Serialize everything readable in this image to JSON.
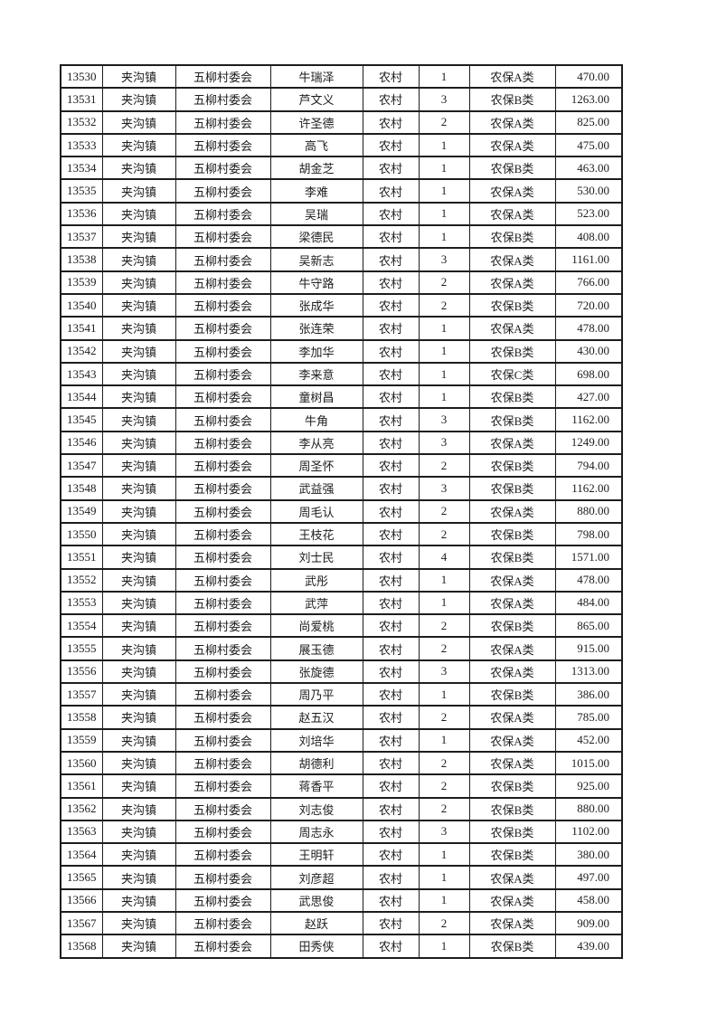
{
  "colors": {
    "page_background": "#ffffff",
    "border": "#1d1d1d",
    "text": "#1d1d1d"
  },
  "table": {
    "rows": [
      {
        "serial": "13530",
        "town": "夹沟镇",
        "village": "五柳村委会",
        "person": "牛瑞泽",
        "residence": "农村",
        "count": "1",
        "category": "农保A类",
        "amount": "470.00"
      },
      {
        "serial": "13531",
        "town": "夹沟镇",
        "village": "五柳村委会",
        "person": "芦文义",
        "residence": "农村",
        "count": "3",
        "category": "农保B类",
        "amount": "1263.00"
      },
      {
        "serial": "13532",
        "town": "夹沟镇",
        "village": "五柳村委会",
        "person": "许圣德",
        "residence": "农村",
        "count": "2",
        "category": "农保A类",
        "amount": "825.00"
      },
      {
        "serial": "13533",
        "town": "夹沟镇",
        "village": "五柳村委会",
        "person": "高飞",
        "residence": "农村",
        "count": "1",
        "category": "农保A类",
        "amount": "475.00"
      },
      {
        "serial": "13534",
        "town": "夹沟镇",
        "village": "五柳村委会",
        "person": "胡金芝",
        "residence": "农村",
        "count": "1",
        "category": "农保B类",
        "amount": "463.00"
      },
      {
        "serial": "13535",
        "town": "夹沟镇",
        "village": "五柳村委会",
        "person": "李难",
        "residence": "农村",
        "count": "1",
        "category": "农保A类",
        "amount": "530.00"
      },
      {
        "serial": "13536",
        "town": "夹沟镇",
        "village": "五柳村委会",
        "person": "吴瑞",
        "residence": "农村",
        "count": "1",
        "category": "农保A类",
        "amount": "523.00"
      },
      {
        "serial": "13537",
        "town": "夹沟镇",
        "village": "五柳村委会",
        "person": "梁德民",
        "residence": "农村",
        "count": "1",
        "category": "农保B类",
        "amount": "408.00"
      },
      {
        "serial": "13538",
        "town": "夹沟镇",
        "village": "五柳村委会",
        "person": "吴新志",
        "residence": "农村",
        "count": "3",
        "category": "农保A类",
        "amount": "1161.00"
      },
      {
        "serial": "13539",
        "town": "夹沟镇",
        "village": "五柳村委会",
        "person": "牛守路",
        "residence": "农村",
        "count": "2",
        "category": "农保A类",
        "amount": "766.00"
      },
      {
        "serial": "13540",
        "town": "夹沟镇",
        "village": "五柳村委会",
        "person": "张成华",
        "residence": "农村",
        "count": "2",
        "category": "农保B类",
        "amount": "720.00"
      },
      {
        "serial": "13541",
        "town": "夹沟镇",
        "village": "五柳村委会",
        "person": "张连荣",
        "residence": "农村",
        "count": "1",
        "category": "农保A类",
        "amount": "478.00"
      },
      {
        "serial": "13542",
        "town": "夹沟镇",
        "village": "五柳村委会",
        "person": "李加华",
        "residence": "农村",
        "count": "1",
        "category": "农保B类",
        "amount": "430.00"
      },
      {
        "serial": "13543",
        "town": "夹沟镇",
        "village": "五柳村委会",
        "person": "李来意",
        "residence": "农村",
        "count": "1",
        "category": "农保C类",
        "amount": "698.00"
      },
      {
        "serial": "13544",
        "town": "夹沟镇",
        "village": "五柳村委会",
        "person": "童树昌",
        "residence": "农村",
        "count": "1",
        "category": "农保B类",
        "amount": "427.00"
      },
      {
        "serial": "13545",
        "town": "夹沟镇",
        "village": "五柳村委会",
        "person": "牛角",
        "residence": "农村",
        "count": "3",
        "category": "农保B类",
        "amount": "1162.00"
      },
      {
        "serial": "13546",
        "town": "夹沟镇",
        "village": "五柳村委会",
        "person": "李从亮",
        "residence": "农村",
        "count": "3",
        "category": "农保A类",
        "amount": "1249.00"
      },
      {
        "serial": "13547",
        "town": "夹沟镇",
        "village": "五柳村委会",
        "person": "周圣怀",
        "residence": "农村",
        "count": "2",
        "category": "农保B类",
        "amount": "794.00"
      },
      {
        "serial": "13548",
        "town": "夹沟镇",
        "village": "五柳村委会",
        "person": "武益强",
        "residence": "农村",
        "count": "3",
        "category": "农保B类",
        "amount": "1162.00"
      },
      {
        "serial": "13549",
        "town": "夹沟镇",
        "village": "五柳村委会",
        "person": "周毛认",
        "residence": "农村",
        "count": "2",
        "category": "农保A类",
        "amount": "880.00"
      },
      {
        "serial": "13550",
        "town": "夹沟镇",
        "village": "五柳村委会",
        "person": "王枝花",
        "residence": "农村",
        "count": "2",
        "category": "农保B类",
        "amount": "798.00"
      },
      {
        "serial": "13551",
        "town": "夹沟镇",
        "village": "五柳村委会",
        "person": "刘士民",
        "residence": "农村",
        "count": "4",
        "category": "农保B类",
        "amount": "1571.00"
      },
      {
        "serial": "13552",
        "town": "夹沟镇",
        "village": "五柳村委会",
        "person": "武彤",
        "residence": "农村",
        "count": "1",
        "category": "农保A类",
        "amount": "478.00"
      },
      {
        "serial": "13553",
        "town": "夹沟镇",
        "village": "五柳村委会",
        "person": "武萍",
        "residence": "农村",
        "count": "1",
        "category": "农保A类",
        "amount": "484.00"
      },
      {
        "serial": "13554",
        "town": "夹沟镇",
        "village": "五柳村委会",
        "person": "尚爱桃",
        "residence": "农村",
        "count": "2",
        "category": "农保B类",
        "amount": "865.00"
      },
      {
        "serial": "13555",
        "town": "夹沟镇",
        "village": "五柳村委会",
        "person": "展玉德",
        "residence": "农村",
        "count": "2",
        "category": "农保A类",
        "amount": "915.00"
      },
      {
        "serial": "13556",
        "town": "夹沟镇",
        "village": "五柳村委会",
        "person": "张旋德",
        "residence": "农村",
        "count": "3",
        "category": "农保A类",
        "amount": "1313.00"
      },
      {
        "serial": "13557",
        "town": "夹沟镇",
        "village": "五柳村委会",
        "person": "周乃平",
        "residence": "农村",
        "count": "1",
        "category": "农保B类",
        "amount": "386.00"
      },
      {
        "serial": "13558",
        "town": "夹沟镇",
        "village": "五柳村委会",
        "person": "赵五汉",
        "residence": "农村",
        "count": "2",
        "category": "农保A类",
        "amount": "785.00"
      },
      {
        "serial": "13559",
        "town": "夹沟镇",
        "village": "五柳村委会",
        "person": "刘培华",
        "residence": "农村",
        "count": "1",
        "category": "农保A类",
        "amount": "452.00"
      },
      {
        "serial": "13560",
        "town": "夹沟镇",
        "village": "五柳村委会",
        "person": "胡德利",
        "residence": "农村",
        "count": "2",
        "category": "农保A类",
        "amount": "1015.00"
      },
      {
        "serial": "13561",
        "town": "夹沟镇",
        "village": "五柳村委会",
        "person": "蒋香平",
        "residence": "农村",
        "count": "2",
        "category": "农保B类",
        "amount": "925.00"
      },
      {
        "serial": "13562",
        "town": "夹沟镇",
        "village": "五柳村委会",
        "person": "刘志俊",
        "residence": "农村",
        "count": "2",
        "category": "农保B类",
        "amount": "880.00"
      },
      {
        "serial": "13563",
        "town": "夹沟镇",
        "village": "五柳村委会",
        "person": "周志永",
        "residence": "农村",
        "count": "3",
        "category": "农保B类",
        "amount": "1102.00"
      },
      {
        "serial": "13564",
        "town": "夹沟镇",
        "village": "五柳村委会",
        "person": "王明轩",
        "residence": "农村",
        "count": "1",
        "category": "农保B类",
        "amount": "380.00"
      },
      {
        "serial": "13565",
        "town": "夹沟镇",
        "village": "五柳村委会",
        "person": "刘彦超",
        "residence": "农村",
        "count": "1",
        "category": "农保A类",
        "amount": "497.00"
      },
      {
        "serial": "13566",
        "town": "夹沟镇",
        "village": "五柳村委会",
        "person": "武思俊",
        "residence": "农村",
        "count": "1",
        "category": "农保A类",
        "amount": "458.00"
      },
      {
        "serial": "13567",
        "town": "夹沟镇",
        "village": "五柳村委会",
        "person": "赵跃",
        "residence": "农村",
        "count": "2",
        "category": "农保A类",
        "amount": "909.00"
      },
      {
        "serial": "13568",
        "town": "夹沟镇",
        "village": "五柳村委会",
        "person": "田秀侠",
        "residence": "农村",
        "count": "1",
        "category": "农保B类",
        "amount": "439.00"
      }
    ]
  }
}
